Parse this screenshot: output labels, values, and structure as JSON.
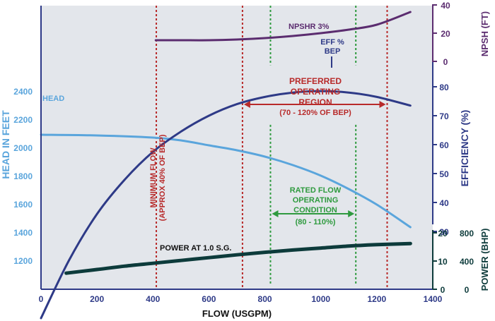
{
  "chart_data": {
    "type": "line",
    "xlabel": "FLOW (USGPM)",
    "xlim": [
      0,
      1400
    ],
    "x_ticks": [
      0,
      200,
      400,
      600,
      800,
      1000,
      1200,
      1400
    ],
    "axes": {
      "head": {
        "label": "HEAD IN FEET",
        "ylim": [
          1000,
          3000
        ],
        "ticks": [
          1200,
          1400,
          1600,
          1800,
          2000,
          2200,
          2400
        ],
        "color": "#5aa5dc"
      },
      "efficiency": {
        "label": "EFFICIENCY (%)",
        "ylim": [
          20,
          80
        ],
        "ticks": [
          30,
          40,
          50,
          60,
          70,
          80
        ],
        "color": "#2e3a87"
      },
      "npsh": {
        "label": "NPSH (FT)",
        "ylim": [
          0,
          40
        ],
        "ticks": [
          0,
          20,
          40
        ],
        "color": "#5b2c6f"
      },
      "power": {
        "label": "POWER (BHP)",
        "ticks_bhp": [
          0,
          400,
          800
        ],
        "ticks_small": [
          0,
          10,
          20
        ],
        "color": "#0d3b3b"
      }
    },
    "series": [
      {
        "name": "HEAD",
        "axis": "head",
        "color": "#5aa5dc",
        "points": [
          [
            0,
            2095
          ],
          [
            200,
            2090
          ],
          [
            400,
            2075
          ],
          [
            500,
            2055
          ],
          [
            600,
            2020
          ],
          [
            700,
            1985
          ],
          [
            800,
            1940
          ],
          [
            900,
            1880
          ],
          [
            1000,
            1805
          ],
          [
            1100,
            1710
          ],
          [
            1200,
            1600
          ],
          [
            1320,
            1440
          ]
        ]
      },
      {
        "name": "EFF % BEP",
        "axis": "efficiency",
        "color": "#2e3a87",
        "points": [
          [
            0,
            0
          ],
          [
            100,
            20
          ],
          [
            200,
            36
          ],
          [
            300,
            48
          ],
          [
            400,
            57.5
          ],
          [
            500,
            64.5
          ],
          [
            600,
            70
          ],
          [
            700,
            74
          ],
          [
            800,
            76.5
          ],
          [
            900,
            78
          ],
          [
            1000,
            78.5
          ],
          [
            1100,
            78
          ],
          [
            1200,
            76.5
          ],
          [
            1320,
            73.5
          ]
        ]
      },
      {
        "name": "NPSHR 3%",
        "axis": "npsh",
        "color": "#5b2c6f",
        "points": [
          [
            410,
            15
          ],
          [
            500,
            15
          ],
          [
            600,
            15
          ],
          [
            700,
            15.5
          ],
          [
            800,
            16.5
          ],
          [
            900,
            18
          ],
          [
            1000,
            20
          ],
          [
            1100,
            22.5
          ],
          [
            1200,
            26
          ],
          [
            1320,
            35
          ]
        ]
      },
      {
        "name": "POWER AT 1.0 S.G.",
        "axis": "power",
        "color": "#0d3b3b",
        "points": [
          [
            90,
            5.7
          ],
          [
            200,
            7
          ],
          [
            300,
            8.2
          ],
          [
            400,
            9.2
          ],
          [
            500,
            10.2
          ],
          [
            600,
            11.2
          ],
          [
            700,
            12.2
          ],
          [
            800,
            13.1
          ],
          [
            900,
            13.9
          ],
          [
            1000,
            14.6
          ],
          [
            1100,
            15.3
          ],
          [
            1200,
            15.8
          ],
          [
            1320,
            16.2
          ]
        ]
      }
    ],
    "vlines": [
      {
        "x": 412,
        "color": "#b82a2a"
      },
      {
        "x": 720,
        "color": "#b82a2a"
      },
      {
        "x": 820,
        "color": "#2e9a3e",
        "segments": [
          [
            1,
            0.79
          ],
          [
            0.58,
            0.02
          ]
        ]
      },
      {
        "x": 1125,
        "color": "#2e9a3e",
        "segments": [
          [
            1,
            0.79
          ],
          [
            0.58,
            0.02
          ]
        ]
      },
      {
        "x": 1237,
        "color": "#b82a2a"
      }
    ],
    "annotations": {
      "minimum_flow": [
        "MINIMUM FLOW",
        "(APPROX 40% OF BEP)"
      ],
      "preferred": [
        "PREFERRED",
        "OPERATING",
        "REGION"
      ],
      "preferred_range": "(70 - 120% OF BEP)",
      "rated": [
        "RATED FLOW",
        "OPERATING",
        "CONDITION"
      ],
      "rated_range": "(80 - 110%)",
      "eff_label": [
        "EFF %",
        "BEP"
      ],
      "head_label": "HEAD",
      "npshr_label": "NPSHR 3%",
      "power_label": "POWER AT 1.0 S.G."
    },
    "colors": {
      "panel": "#e3e6eb",
      "red": "#b82a2a",
      "green": "#2e9a3e",
      "axis": "#2e3a87"
    }
  }
}
